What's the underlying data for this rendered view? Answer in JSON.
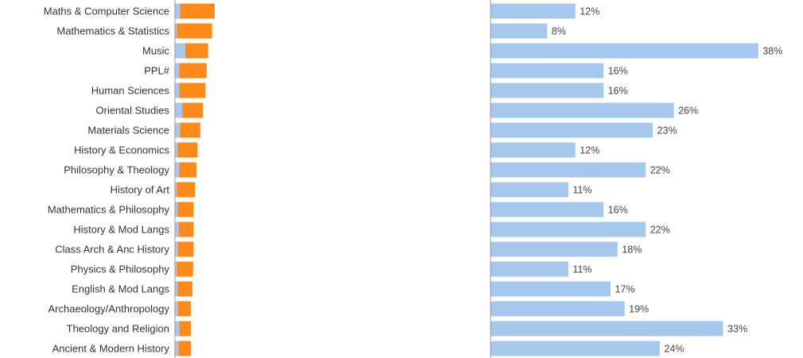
{
  "chart_data": [
    {
      "type": "bar",
      "orientation": "horizontal",
      "stacked": true,
      "categories": [
        "Maths & Computer Science",
        "Mathematics & Statistics",
        "Music",
        "PPL#",
        "Human Sciences",
        "Oriental Studies",
        "Materials Science",
        "History & Economics",
        "Philosophy & Theology",
        "History of Art",
        "Mathematics & Philosophy",
        "History & Mod Langs",
        "Class Arch & Anc History",
        "Physics & Philosophy",
        "English & Mod Langs",
        "Archaeology/Anthropology",
        "Theology and Religion",
        "Ancient & Modern History"
      ],
      "series": [
        {
          "color": "#a6c8ec",
          "values": [
            0.36,
            0.12,
            0.75,
            0.3,
            0.3,
            0.52,
            0.35,
            0.17,
            0.3,
            0.11,
            0.16,
            0.25,
            0.19,
            0.11,
            0.17,
            0.19,
            0.31,
            0.23
          ]
        },
        {
          "color": "#ff8a19",
          "values": [
            2.64,
            2.68,
            1.75,
            2.1,
            2.0,
            1.58,
            1.55,
            1.53,
            1.3,
            1.39,
            1.24,
            1.15,
            1.21,
            1.24,
            1.13,
            1.01,
            0.89,
            0.97
          ]
        }
      ],
      "grid": false,
      "legend": "none"
    },
    {
      "type": "bar",
      "orientation": "horizontal",
      "categories": [
        "Maths & Computer Science",
        "Mathematics & Statistics",
        "Music",
        "PPL#",
        "Human Sciences",
        "Oriental Studies",
        "Materials Science",
        "History & Economics",
        "Philosophy & Theology",
        "History of Art",
        "Mathematics & Philosophy",
        "History & Mod Langs",
        "Class Arch & Anc History",
        "Physics & Philosophy",
        "English & Mod Langs",
        "Archaeology/Anthropology",
        "Theology and Religion",
        "Ancient & Modern History"
      ],
      "values": [
        12,
        8,
        38,
        16,
        16,
        26,
        23,
        12,
        22,
        11,
        16,
        22,
        18,
        11,
        17,
        19,
        33,
        24
      ],
      "data_labels": [
        "12%",
        "8%",
        "38%",
        "16%",
        "16%",
        "26%",
        "23%",
        "12%",
        "22%",
        "11%",
        "16%",
        "22%",
        "18%",
        "11%",
        "17%",
        "19%",
        "33%",
        "24%"
      ],
      "color": "#a6c8ec",
      "grid": false,
      "legend": "none"
    }
  ]
}
